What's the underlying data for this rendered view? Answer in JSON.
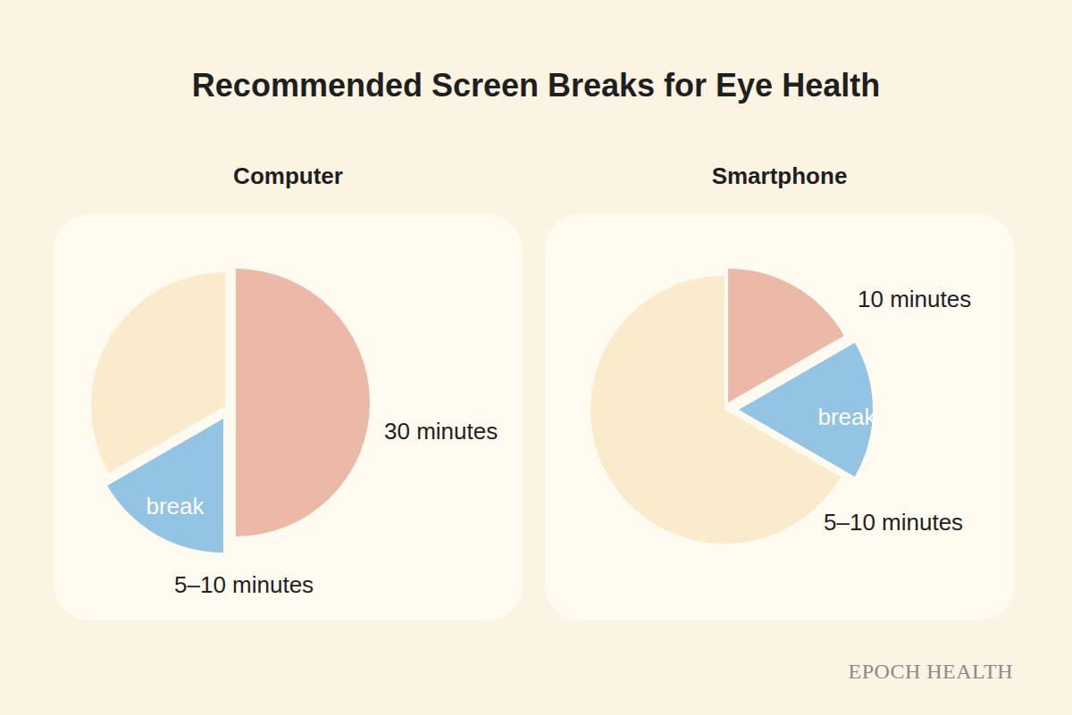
{
  "title": "Recommended Screen Breaks for Eye Health",
  "credit": "EPOCH HEALTH",
  "chart_data": [
    {
      "type": "pie",
      "title": "Computer",
      "categories": [
        null,
        "break",
        null
      ],
      "values": [
        30,
        10,
        20
      ],
      "value_labels": [
        "30 minutes",
        "5–10 minutes",
        null
      ],
      "colors": [
        "#ecb9a9",
        "#94c4e4",
        "#f9ebcc"
      ]
    },
    {
      "type": "pie",
      "title": "Smartphone",
      "categories": [
        null,
        "break",
        null
      ],
      "values": [
        10,
        10,
        40
      ],
      "value_labels": [
        "10 minutes",
        "5–10 minutes",
        null
      ],
      "colors": [
        "#ecb9a9",
        "#94c4e4",
        "#f9ebcc"
      ]
    }
  ]
}
